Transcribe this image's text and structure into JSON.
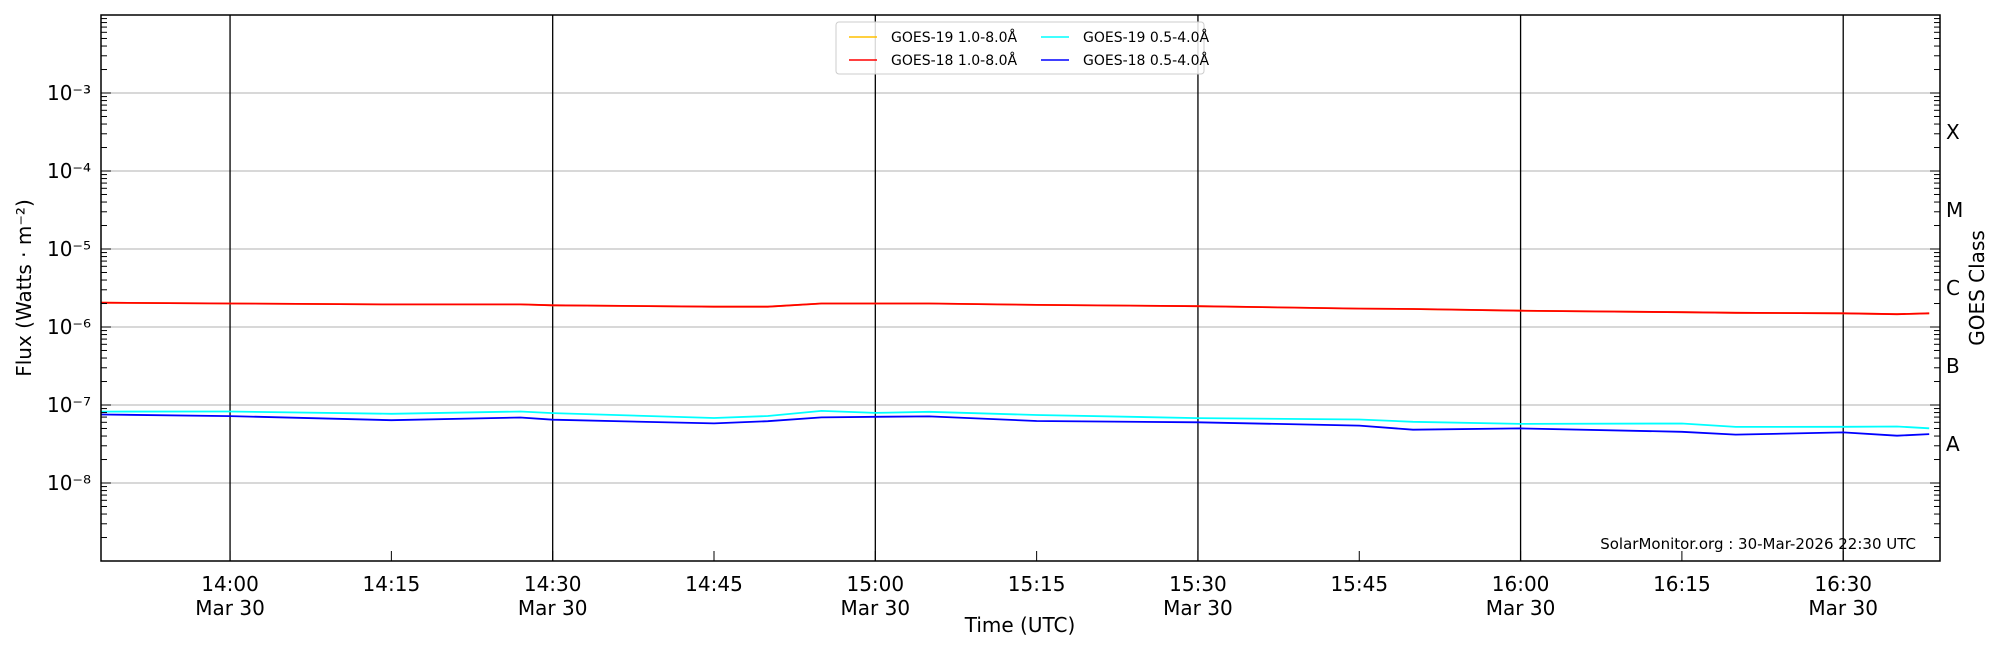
{
  "chart_data": {
    "type": "line",
    "xlabel": "Time (UTC)",
    "ylabel": "Flux (Watts · m⁻²)",
    "ylabel_right": "GOES Class",
    "yscale": "log",
    "ylim": [
      1e-09,
      0.01
    ],
    "xlim": [
      "13:48",
      "16:39"
    ],
    "grid": "horizontal at decades; vertical lines at major date ticks",
    "y_ticks": [
      {
        "value": 1e-08,
        "label": "10⁻⁸"
      },
      {
        "value": 1e-07,
        "label": "10⁻⁷"
      },
      {
        "value": 1e-06,
        "label": "10⁻⁶"
      },
      {
        "value": 1e-05,
        "label": "10⁻⁵"
      },
      {
        "value": 0.0001,
        "label": "10⁻⁴"
      },
      {
        "value": 0.001,
        "label": "10⁻³"
      }
    ],
    "x_ticks": [
      {
        "time": "14:00",
        "label": "14:00",
        "date": "Mar 30"
      },
      {
        "time": "14:15",
        "label": "14:15",
        "date": ""
      },
      {
        "time": "14:30",
        "label": "14:30",
        "date": "Mar 30"
      },
      {
        "time": "14:45",
        "label": "14:45",
        "date": ""
      },
      {
        "time": "15:00",
        "label": "15:00",
        "date": "Mar 30"
      },
      {
        "time": "15:15",
        "label": "15:15",
        "date": ""
      },
      {
        "time": "15:30",
        "label": "15:30",
        "date": "Mar 30"
      },
      {
        "time": "15:45",
        "label": "15:45",
        "date": ""
      },
      {
        "time": "16:00",
        "label": "16:00",
        "date": "Mar 30"
      },
      {
        "time": "16:15",
        "label": "16:15",
        "date": ""
      },
      {
        "time": "16:30",
        "label": "16:30",
        "date": "Mar 30"
      }
    ],
    "goes_classes": [
      {
        "label": "X",
        "value": 0.000316
      },
      {
        "label": "M",
        "value": 3.16e-05
      },
      {
        "label": "C",
        "value": 3.16e-06
      },
      {
        "label": "B",
        "value": 3.16e-07
      },
      {
        "label": "A",
        "value": 3.16e-08
      }
    ],
    "legend_position": "top-center",
    "annotation": "SolarMonitor.org : 30-Mar-2026 22:30 UTC",
    "x": [
      "13:48",
      "14:00",
      "14:15",
      "14:27",
      "14:30",
      "14:45",
      "14:50",
      "14:55",
      "15:00",
      "15:05",
      "15:15",
      "15:30",
      "15:45",
      "15:50",
      "16:00",
      "16:15",
      "16:20",
      "16:30",
      "16:35",
      "16:38"
    ],
    "series": [
      {
        "name": "GOES-19 1.0-8.0Å",
        "color": "#ffc000",
        "values": [
          2.05e-06,
          2e-06,
          1.95e-06,
          1.95e-06,
          1.9e-06,
          1.82e-06,
          1.82e-06,
          2e-06,
          2e-06,
          2e-06,
          1.92e-06,
          1.85e-06,
          1.72e-06,
          1.7e-06,
          1.62e-06,
          1.55e-06,
          1.52e-06,
          1.5e-06,
          1.46e-06,
          1.5e-06
        ]
      },
      {
        "name": "GOES-18 1.0-8.0Å",
        "color": "#ff0000",
        "values": [
          2.05e-06,
          2e-06,
          1.95e-06,
          1.95e-06,
          1.9e-06,
          1.82e-06,
          1.82e-06,
          2e-06,
          2e-06,
          2e-06,
          1.92e-06,
          1.85e-06,
          1.72e-06,
          1.7e-06,
          1.62e-06,
          1.55e-06,
          1.52e-06,
          1.5e-06,
          1.46e-06,
          1.5e-06
        ]
      },
      {
        "name": "GOES-19 0.5-4.0Å",
        "color": "#00ffff",
        "values": [
          8.5e-08,
          8e-08,
          7.8e-08,
          8.4e-08,
          7.6e-08,
          7e-08,
          7.2e-08,
          8.2e-08,
          8.2e-08,
          8e-08,
          7.4e-08,
          7e-08,
          6.3e-08,
          6.2e-08,
          5.8e-08,
          5.6e-08,
          5.4e-08,
          5.2e-08,
          5.2e-08,
          5.2e-08
        ]
      },
      {
        "name": "GOES-18 0.5-4.0Å",
        "color": "#0000ff",
        "values": [
          7.6e-08,
          7e-08,
          6.6e-08,
          6.8e-08,
          6.4e-08,
          6e-08,
          6e-08,
          7e-08,
          7.2e-08,
          6.9e-08,
          6.4e-08,
          6e-08,
          5.3e-08,
          5e-08,
          4.9e-08,
          4.5e-08,
          4.3e-08,
          4.3e-08,
          4.1e-08,
          4.3e-08
        ]
      }
    ]
  }
}
